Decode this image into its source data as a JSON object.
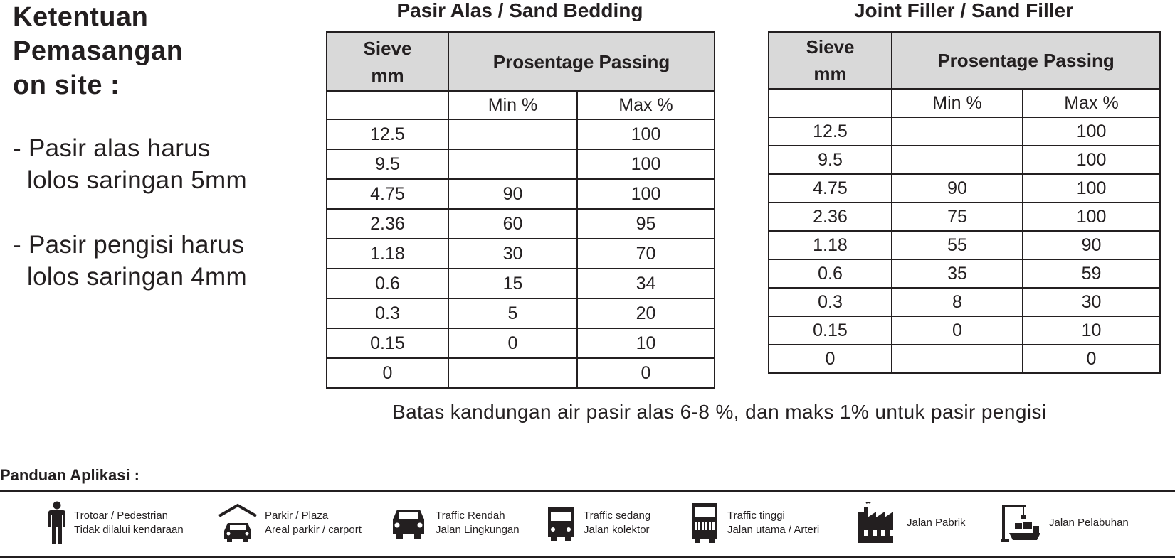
{
  "heading": {
    "line1": "Ketentuan",
    "line2": "Pemasangan",
    "line3": "on site :"
  },
  "notes": [
    {
      "line1": "- Pasir alas harus",
      "line2": "  lolos saringan 5mm"
    },
    {
      "line1": "- Pasir pengisi harus",
      "line2": "  lolos saringan 4mm"
    }
  ],
  "tables": [
    {
      "title": "Pasir Alas / Sand Bedding",
      "header_sieve_1": "Sieve",
      "header_sieve_2": "mm",
      "header_passing": "Prosentage Passing",
      "header_min": "Min %",
      "header_max": "Max %",
      "rows": [
        [
          "12.5",
          "",
          "100"
        ],
        [
          "9.5",
          "",
          "100"
        ],
        [
          "4.75",
          "90",
          "100"
        ],
        [
          "2.36",
          "60",
          "95"
        ],
        [
          "1.18",
          "30",
          "70"
        ],
        [
          "0.6",
          "15",
          "34"
        ],
        [
          "0.3",
          "5",
          "20"
        ],
        [
          "0.15",
          "0",
          "10"
        ],
        [
          "0",
          "",
          "0"
        ]
      ]
    },
    {
      "title": "Joint Filler / Sand Filler",
      "header_sieve_1": "Sieve",
      "header_sieve_2": "mm",
      "header_passing": "Prosentage Passing",
      "header_min": "Min %",
      "header_max": "Max %",
      "rows": [
        [
          "12.5",
          "",
          "100"
        ],
        [
          "9.5",
          "",
          "100"
        ],
        [
          "4.75",
          "90",
          "100"
        ],
        [
          "2.36",
          "75",
          "100"
        ],
        [
          "1.18",
          "55",
          "90"
        ],
        [
          "0.6",
          "35",
          "59"
        ],
        [
          "0.3",
          "8",
          "30"
        ],
        [
          "0.15",
          "0",
          "10"
        ],
        [
          "0",
          "",
          "0"
        ]
      ]
    }
  ],
  "footnote": "Batas kandungan air pasir alas 6-8 %, dan maks 1% untuk pasir pengisi",
  "panduan": {
    "title": "Panduan Aplikasi :",
    "items": [
      {
        "icon": "pedestrian-icon",
        "line1": "Trotoar / Pedestrian",
        "line2": "Tidak dilalui kendaraan"
      },
      {
        "icon": "carport-icon",
        "line1": "Parkir / Plaza",
        "line2": "Areal parkir / carport"
      },
      {
        "icon": "car-icon",
        "line1": "Traffic Rendah",
        "line2": "Jalan Lingkungan"
      },
      {
        "icon": "truck-icon",
        "line1": "Traffic sedang",
        "line2": "Jalan kolektor"
      },
      {
        "icon": "heavy-truck-icon",
        "line1": "Traffic tinggi",
        "line2": "Jalan utama / Arteri"
      },
      {
        "icon": "factory-icon",
        "line1": "Jalan Pabrik",
        "line2": ""
      },
      {
        "icon": "port-crane-icon",
        "line1": "Jalan Pelabuhan",
        "line2": ""
      }
    ]
  }
}
